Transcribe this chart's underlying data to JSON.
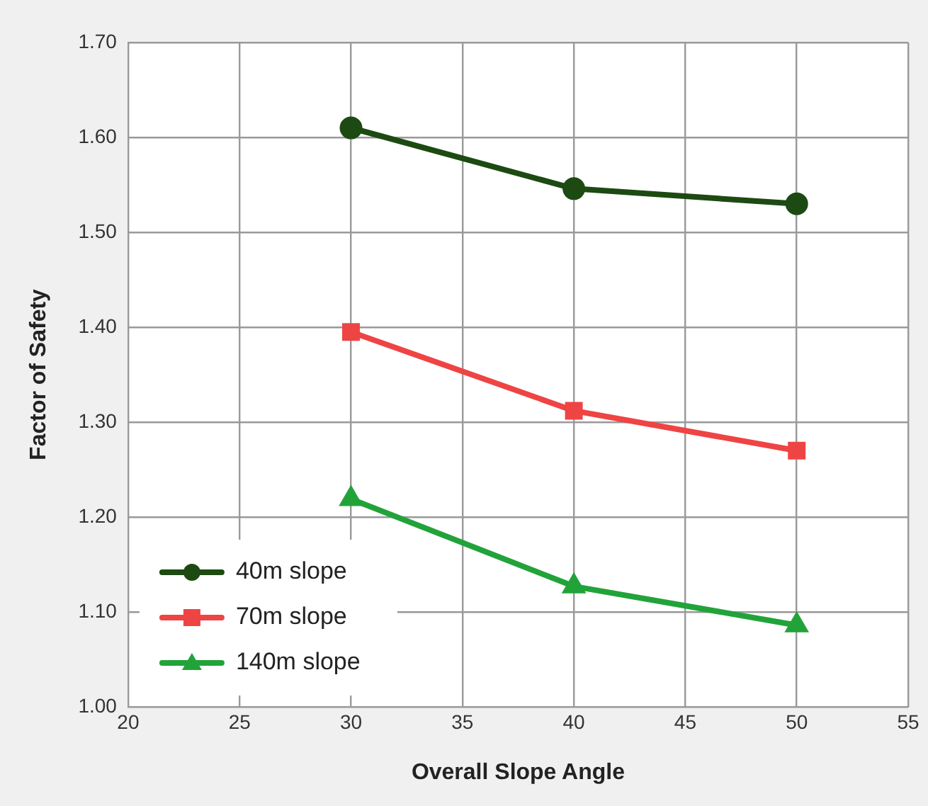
{
  "chart_data": {
    "type": "line",
    "xlabel": "Overall Slope Angle",
    "ylabel": "Factor of Safety",
    "x": [
      30,
      40,
      50
    ],
    "series": [
      {
        "name": "40m slope",
        "color": "#1d4a12",
        "marker": "circle",
        "values": [
          1.61,
          1.546,
          1.53
        ]
      },
      {
        "name": "70m slope",
        "color": "#ef4444",
        "marker": "square",
        "values": [
          1.395,
          1.312,
          1.27
        ]
      },
      {
        "name": "140m slope",
        "color": "#22a33a",
        "marker": "triangle",
        "values": [
          1.219,
          1.127,
          1.086
        ]
      }
    ],
    "xlim": [
      20,
      55
    ],
    "xticks": [
      20,
      25,
      30,
      35,
      40,
      45,
      50,
      55
    ],
    "ylim": [
      1.0,
      1.7
    ],
    "yticks": [
      {
        "value": 1.0,
        "label": "1.00"
      },
      {
        "value": 1.1,
        "label": "1.10"
      },
      {
        "value": 1.2,
        "label": "1.20"
      },
      {
        "value": 1.3,
        "label": "1.30"
      },
      {
        "value": 1.4,
        "label": "1.40"
      },
      {
        "value": 1.5,
        "label": "1.50"
      },
      {
        "value": 1.6,
        "label": "1.60"
      },
      {
        "value": 1.7,
        "label": "1.70"
      }
    ],
    "grid": true,
    "legend": "bottom left",
    "line_style": "solid"
  }
}
